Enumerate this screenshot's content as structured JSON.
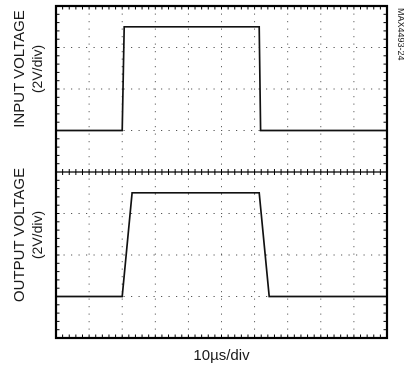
{
  "chart_data": {
    "type": "line",
    "title": "",
    "xlabel": "10µs/div",
    "figure_id": "MAX4493-24",
    "grid": true,
    "grid_divisions": {
      "x": 10,
      "y": 8
    },
    "series": [
      {
        "name": "INPUT VOLTAGE",
        "unit_label": "(2V/div)",
        "x_div": [
          0,
          2.0,
          2.06,
          6.14,
          6.18,
          10
        ],
        "y_div": [
          1.0,
          1.0,
          3.5,
          3.5,
          1.0,
          1.0
        ]
      },
      {
        "name": "OUTPUT VOLTAGE",
        "unit_label": "(2V/div)",
        "x_div": [
          0,
          2.0,
          2.3,
          6.14,
          6.44,
          10
        ],
        "y_div": [
          1.0,
          1.0,
          3.5,
          3.5,
          1.0,
          1.0
        ]
      }
    ]
  }
}
